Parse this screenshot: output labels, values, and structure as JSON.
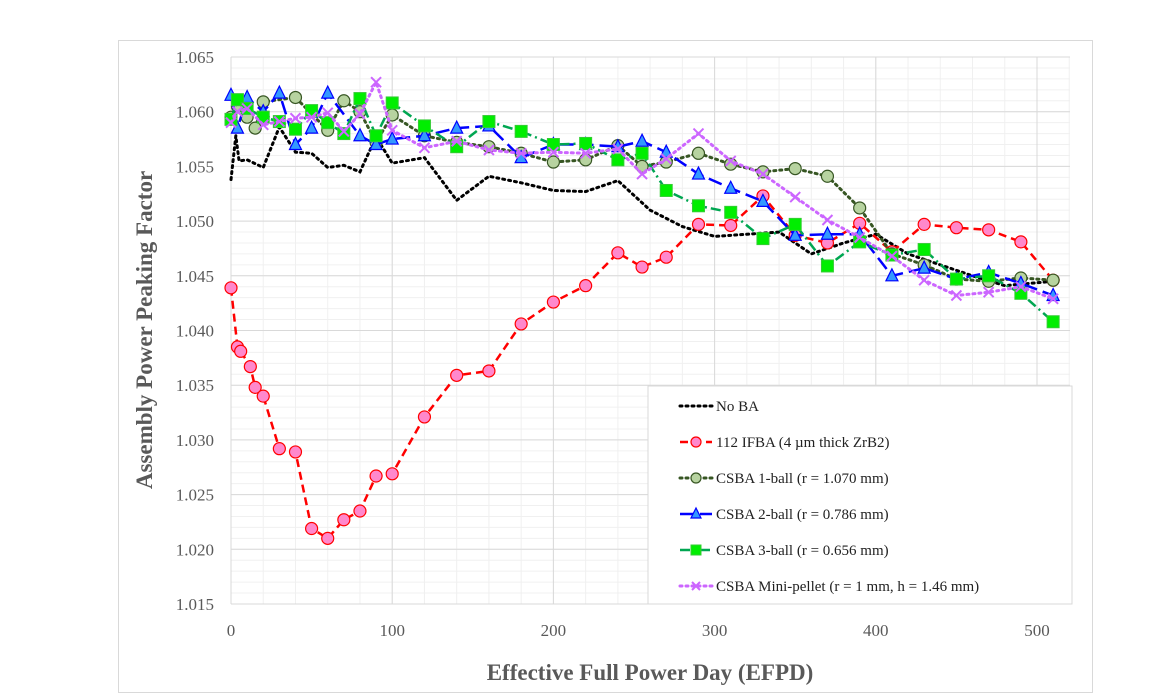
{
  "chart_data": {
    "type": "line",
    "title": "",
    "xlabel": "Effective Full Power Day (EFPD)",
    "ylabel": "Assembly Power Peaking Factor",
    "xlim": [
      0,
      520
    ],
    "ylim": [
      1.015,
      1.065
    ],
    "xticks": [
      "0",
      "100",
      "200",
      "300",
      "400",
      "500"
    ],
    "yticks": [
      "1.015",
      "1.020",
      "1.025",
      "1.030",
      "1.035",
      "1.040",
      "1.045",
      "1.050",
      "1.055",
      "1.060",
      "1.065"
    ],
    "grid": true,
    "legend_position": "bottom-right",
    "series": [
      {
        "name": "No BA",
        "color": "#000000",
        "dash": "dotted",
        "marker": "none",
        "x": [
          0,
          3,
          5,
          10,
          20,
          30,
          40,
          50,
          60,
          70,
          80,
          90,
          100,
          120,
          140,
          160,
          180,
          200,
          220,
          240,
          260,
          280,
          300,
          320,
          340,
          360,
          380,
          400,
          420,
          440,
          460,
          480,
          510
        ],
        "y": [
          1.0538,
          1.0578,
          1.0555,
          1.0556,
          1.0549,
          1.0586,
          1.0563,
          1.0562,
          1.0549,
          1.0551,
          1.0545,
          1.0577,
          1.0553,
          1.0558,
          1.0519,
          1.0541,
          1.0535,
          1.0528,
          1.0527,
          1.0537,
          1.051,
          1.0495,
          1.0486,
          1.0488,
          1.049,
          1.047,
          1.048,
          1.0488,
          1.047,
          1.046,
          1.045,
          1.0441,
          1.0445
        ]
      },
      {
        "name": "112 IFBA (4 µm thick ZrB2)",
        "color": "#ff0000",
        "marker_fill": "#ff88cc",
        "dash": "dashed",
        "marker": "circle",
        "x": [
          0,
          4,
          6,
          12,
          15,
          20,
          30,
          40,
          50,
          60,
          70,
          80,
          90,
          100,
          120,
          140,
          160,
          180,
          200,
          220,
          240,
          255,
          270,
          290,
          310,
          330,
          350,
          370,
          390,
          410,
          430,
          450,
          470,
          490,
          510
        ],
        "y": [
          1.0439,
          1.0385,
          1.0381,
          1.0367,
          1.0348,
          1.034,
          1.0292,
          1.0289,
          1.0219,
          1.021,
          1.0227,
          1.0235,
          1.0267,
          1.0269,
          1.0321,
          1.0359,
          1.0363,
          1.0406,
          1.0426,
          1.0441,
          1.0471,
          1.0458,
          1.0467,
          1.0497,
          1.0496,
          1.0523,
          1.0487,
          1.048,
          1.0498,
          1.0472,
          1.0497,
          1.0494,
          1.0492,
          1.0481,
          1.0446
        ]
      },
      {
        "name": "CSBA 1-ball (r = 1.070 mm)",
        "color": "#375623",
        "marker_fill": "#b7d3a0",
        "dash": "dotted",
        "marker": "circle",
        "x": [
          0,
          4,
          10,
          15,
          20,
          40,
          60,
          70,
          80,
          90,
          100,
          120,
          140,
          160,
          180,
          200,
          220,
          240,
          255,
          270,
          290,
          310,
          330,
          350,
          370,
          390,
          410,
          430,
          450,
          470,
          490,
          510
        ],
        "y": [
          1.0595,
          1.0605,
          1.0595,
          1.0585,
          1.0609,
          1.0613,
          1.0583,
          1.061,
          1.06,
          1.0572,
          1.0597,
          1.0578,
          1.0572,
          1.0568,
          1.0562,
          1.0554,
          1.0556,
          1.0569,
          1.055,
          1.0554,
          1.0562,
          1.0552,
          1.0545,
          1.0548,
          1.0541,
          1.0512,
          1.047,
          1.046,
          1.0447,
          1.0445,
          1.0448,
          1.0446
        ]
      },
      {
        "name": "CSBA 2-ball (r = 0.786 mm)",
        "color": "#0000ff",
        "marker_fill": "#3399ff",
        "dash": "longdash",
        "marker": "triangle",
        "x": [
          0,
          4,
          10,
          20,
          30,
          40,
          50,
          60,
          80,
          90,
          100,
          120,
          140,
          160,
          180,
          200,
          220,
          240,
          255,
          270,
          290,
          310,
          330,
          350,
          370,
          390,
          410,
          430,
          450,
          470,
          490,
          510
        ],
        "y": [
          1.0615,
          1.0585,
          1.0613,
          1.06,
          1.0617,
          1.057,
          1.0585,
          1.0617,
          1.0578,
          1.057,
          1.0575,
          1.0578,
          1.0585,
          1.0587,
          1.0558,
          1.057,
          1.057,
          1.0568,
          1.0573,
          1.0563,
          1.0543,
          1.053,
          1.0518,
          1.0487,
          1.0488,
          1.0488,
          1.045,
          1.0457,
          1.0447,
          1.0453,
          1.0443,
          1.0432
        ]
      },
      {
        "name": "CSBA 3-ball (r = 0.656 mm)",
        "color": "#00a651",
        "marker_fill": "#00ee00",
        "dash": "dashdot",
        "marker": "square",
        "x": [
          0,
          4,
          10,
          20,
          30,
          40,
          50,
          60,
          70,
          80,
          90,
          100,
          120,
          140,
          160,
          180,
          200,
          220,
          240,
          255,
          270,
          290,
          310,
          330,
          350,
          370,
          390,
          410,
          430,
          450,
          470,
          490,
          510
        ],
        "y": [
          1.0593,
          1.0611,
          1.0603,
          1.0595,
          1.0591,
          1.0584,
          1.0601,
          1.059,
          1.058,
          1.0612,
          1.0578,
          1.0608,
          1.0587,
          1.0568,
          1.0591,
          1.0582,
          1.057,
          1.0571,
          1.0556,
          1.0562,
          1.0528,
          1.0514,
          1.0508,
          1.0484,
          1.0497,
          1.0459,
          1.0481,
          1.0469,
          1.0474,
          1.0447,
          1.045,
          1.0434,
          1.0408
        ]
      },
      {
        "name": "CSBA Mini-pellet (r = 1 mm, h = 1.46 mm)",
        "color": "#cc66ff",
        "dash": "dotted",
        "marker": "x",
        "x": [
          0,
          4,
          10,
          20,
          30,
          40,
          50,
          60,
          70,
          80,
          90,
          100,
          120,
          140,
          160,
          180,
          200,
          220,
          240,
          255,
          270,
          290,
          310,
          330,
          350,
          370,
          390,
          410,
          430,
          450,
          470,
          490,
          510
        ],
        "y": [
          1.059,
          1.06,
          1.0603,
          1.0588,
          1.0591,
          1.0594,
          1.0595,
          1.0599,
          1.0582,
          1.0598,
          1.0627,
          1.0583,
          1.0567,
          1.0573,
          1.0565,
          1.0562,
          1.0563,
          1.0562,
          1.0566,
          1.0543,
          1.0557,
          1.058,
          1.0555,
          1.0543,
          1.0522,
          1.0501,
          1.0485,
          1.0468,
          1.0446,
          1.0432,
          1.0435,
          1.044,
          1.0429
        ]
      }
    ]
  }
}
